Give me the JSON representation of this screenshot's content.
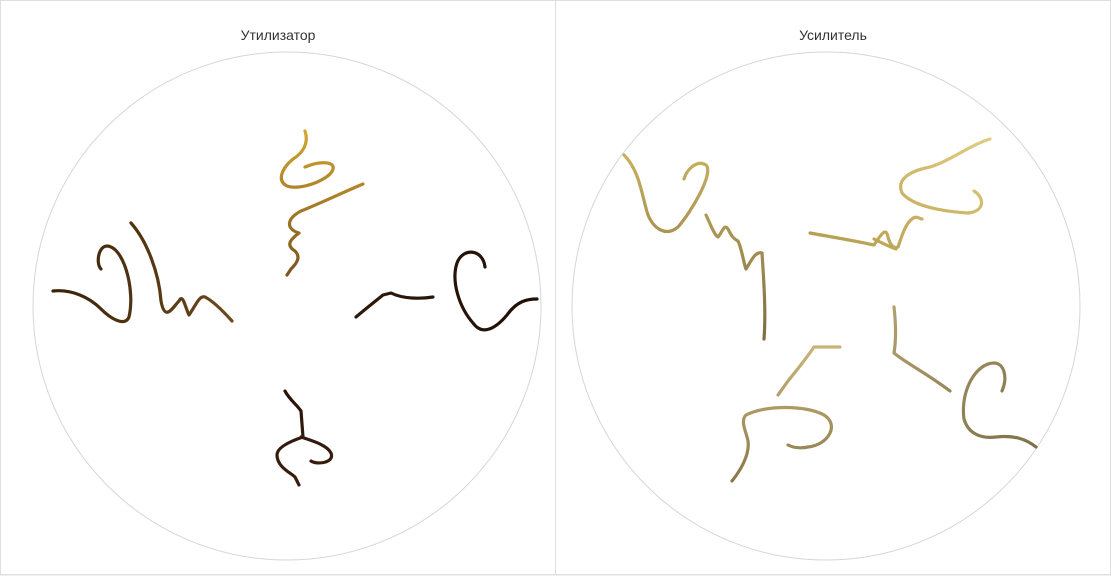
{
  "panels": [
    {
      "title": "Утилизатор",
      "circle_color": "#d6d6d6",
      "glyph_colors": {
        "top": "#c99a2e",
        "left": "#5a3b12",
        "right": "#2e1a0a",
        "bottom": "#241208"
      }
    },
    {
      "title": "Усилитель",
      "circle_color": "#d6d6d6",
      "glyph_colors": {
        "top_left": "#c8b060",
        "top_right": "#d9c278",
        "bottom_left": "#a89660",
        "bottom_right": "#9a8a5a"
      }
    }
  ]
}
